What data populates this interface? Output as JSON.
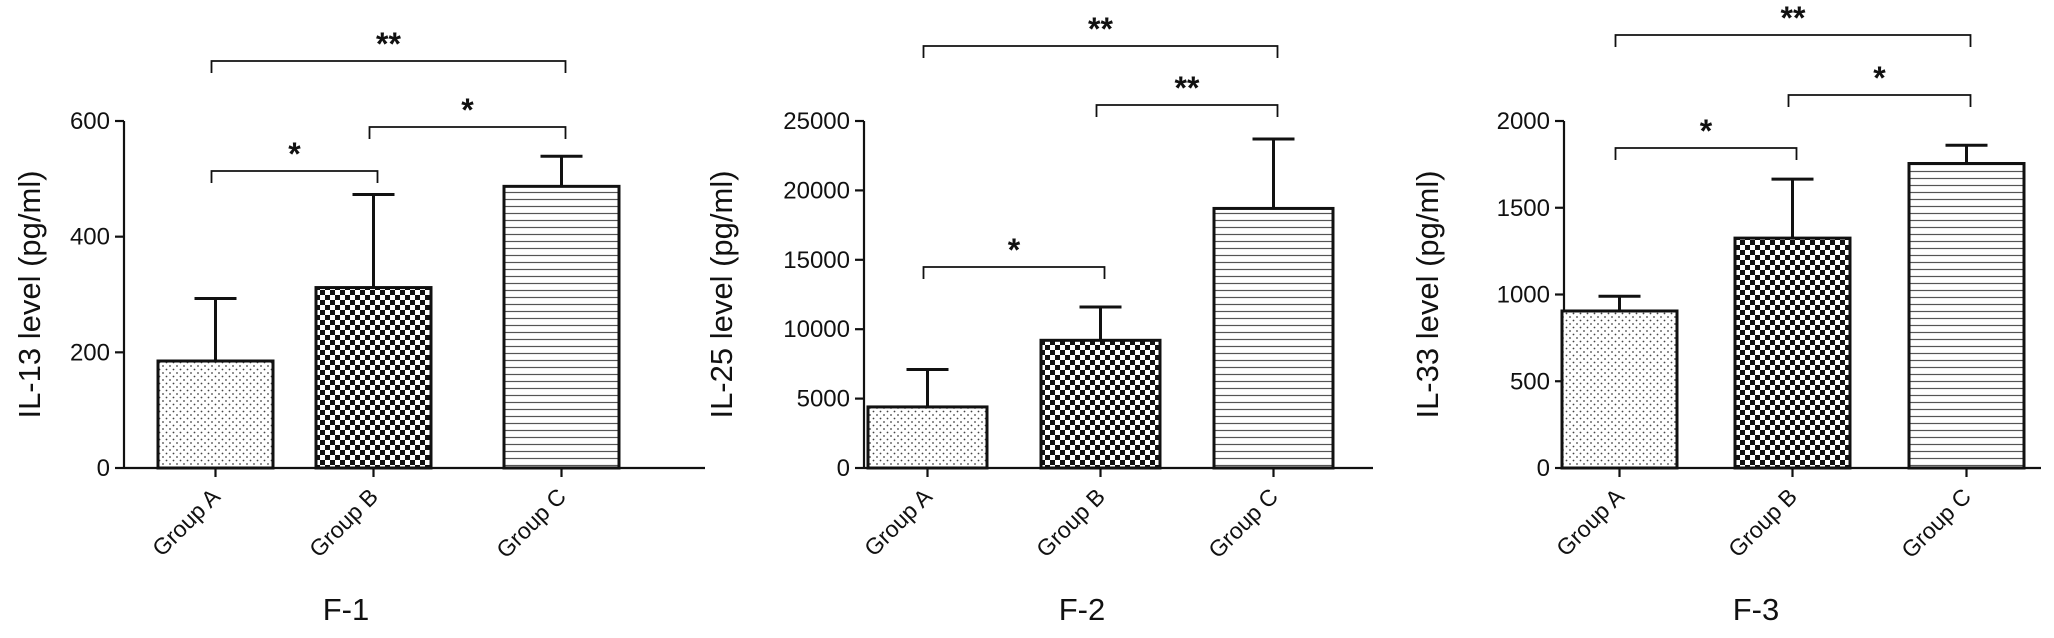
{
  "chart_data": [
    {
      "type": "bar",
      "panel_label": "F-1",
      "title": "",
      "xlabel": "",
      "ylabel": "IL-13 level (pg/ml)",
      "ylim": [
        0,
        600
      ],
      "yticks": [
        0,
        200,
        400,
        600
      ],
      "categories": [
        "Group A",
        "Group B",
        "Group C"
      ],
      "values": [
        185,
        312,
        487
      ],
      "errors": [
        108,
        161,
        52
      ],
      "patterns": [
        "dots",
        "checker",
        "hlines"
      ],
      "significance": [
        {
          "from": 0,
          "to": 1,
          "label": "*"
        },
        {
          "from": 1,
          "to": 2,
          "label": "*"
        },
        {
          "from": 0,
          "to": 2,
          "label": "**"
        }
      ]
    },
    {
      "type": "bar",
      "panel_label": "F-2",
      "title": "",
      "xlabel": "",
      "ylabel": "IL-25 level (pg/ml)",
      "ylim": [
        0,
        25000
      ],
      "yticks": [
        0,
        5000,
        10000,
        15000,
        20000,
        25000
      ],
      "categories": [
        "Group A",
        "Group B",
        "Group C"
      ],
      "values": [
        4400,
        9200,
        18700
      ],
      "errors": [
        2700,
        2400,
        5000
      ],
      "patterns": [
        "dots",
        "checker",
        "hlines"
      ],
      "significance": [
        {
          "from": 0,
          "to": 1,
          "label": "*"
        },
        {
          "from": 1,
          "to": 2,
          "label": "**"
        },
        {
          "from": 0,
          "to": 2,
          "label": "**"
        }
      ]
    },
    {
      "type": "bar",
      "panel_label": "F-3",
      "title": "",
      "xlabel": "",
      "ylabel": "IL-33 level (pg/ml)",
      "ylim": [
        0,
        2000
      ],
      "yticks": [
        0,
        500,
        1000,
        1500,
        2000
      ],
      "categories": [
        "Group A",
        "Group B",
        "Group C"
      ],
      "values": [
        905,
        1325,
        1755
      ],
      "errors": [
        85,
        340,
        105
      ],
      "patterns": [
        "dots",
        "checker",
        "hlines"
      ],
      "significance": [
        {
          "from": 0,
          "to": 1,
          "label": "*"
        },
        {
          "from": 1,
          "to": 2,
          "label": "*"
        },
        {
          "from": 0,
          "to": 2,
          "label": "**"
        }
      ]
    }
  ],
  "colors": {
    "ink": "#111111",
    "background": "#ffffff"
  }
}
